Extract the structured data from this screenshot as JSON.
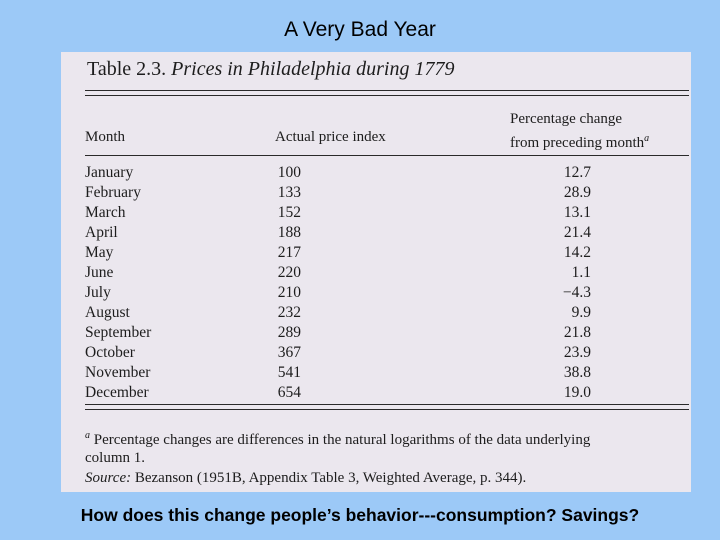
{
  "slide": {
    "title": "A Very Bad Year",
    "question": "How does this change people’s behavior---consumption? Savings?"
  },
  "table": {
    "title_label": "Table 2.3.",
    "title_caption": "Prices in Philadelphia during 1779",
    "headers": {
      "month": "Month",
      "index": "Actual price index",
      "pct_line1": "Percentage change",
      "pct_line2": "from preceding month",
      "pct_marker": "a"
    },
    "rows": [
      {
        "month": "January",
        "index": "100",
        "pct": "12.7"
      },
      {
        "month": "February",
        "index": "133",
        "pct": "28.9"
      },
      {
        "month": "March",
        "index": "152",
        "pct": "13.1"
      },
      {
        "month": "April",
        "index": "188",
        "pct": "21.4"
      },
      {
        "month": "May",
        "index": "217",
        "pct": "14.2"
      },
      {
        "month": "June",
        "index": "220",
        "pct": "1.1"
      },
      {
        "month": "July",
        "index": "210",
        "pct": "−4.3"
      },
      {
        "month": "August",
        "index": "232",
        "pct": "9.9"
      },
      {
        "month": "September",
        "index": "289",
        "pct": "21.8"
      },
      {
        "month": "October",
        "index": "367",
        "pct": "23.9"
      },
      {
        "month": "November",
        "index": "541",
        "pct": "38.8"
      },
      {
        "month": "December",
        "index": "654",
        "pct": "19.0"
      }
    ],
    "footnote_marker": "a",
    "footnote_line1": " Percentage changes are differences in the natural logarithms of the data underlying",
    "footnote_line2": "column 1.",
    "source_label": "Source:",
    "source_text": " Bezanson (1951B, Appendix Table 3, Weighted Average, p. 344)."
  }
}
